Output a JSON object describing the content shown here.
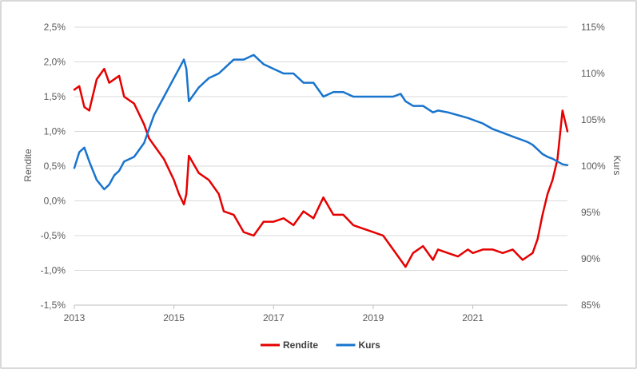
{
  "chart_data": {
    "type": "line",
    "xlabel": "",
    "x_ticks": [
      "2013",
      "2015",
      "2017",
      "2019",
      "2021"
    ],
    "x_tick_values": [
      2013,
      2015,
      2017,
      2019,
      2021
    ],
    "xlim": [
      2013,
      2022.9
    ],
    "y_left": {
      "label": "Rendite",
      "ylim": [
        -1.5,
        2.5
      ],
      "ticks": [
        2.5,
        2.0,
        1.5,
        1.0,
        0.5,
        0.0,
        -0.5,
        -1.0,
        -1.5
      ],
      "tick_labels": [
        "2,5%",
        "2,0%",
        "1,5%",
        "1,0%",
        "0,5%",
        "0,0%",
        "-0,5%",
        "-1,0%",
        "-1,5%"
      ]
    },
    "y_right": {
      "label": "Kurs",
      "ylim": [
        85,
        115
      ],
      "ticks": [
        115,
        110,
        105,
        100,
        95,
        90,
        85
      ],
      "tick_labels": [
        "115%",
        "110%",
        "105%",
        "100%",
        "95%",
        "90%",
        "85%"
      ]
    },
    "grid": true,
    "legend": "bottom",
    "series": [
      {
        "name": "Rendite",
        "axis": "left",
        "color": "#e60000",
        "x": [
          2013.0,
          2013.1,
          2013.2,
          2013.3,
          2013.45,
          2013.6,
          2013.7,
          2013.8,
          2013.9,
          2014.0,
          2014.2,
          2014.4,
          2014.5,
          2014.6,
          2014.8,
          2015.0,
          2015.1,
          2015.2,
          2015.25,
          2015.3,
          2015.5,
          2015.7,
          2015.9,
          2016.0,
          2016.2,
          2016.4,
          2016.6,
          2016.8,
          2017.0,
          2017.2,
          2017.4,
          2017.6,
          2017.8,
          2018.0,
          2018.2,
          2018.4,
          2018.6,
          2018.8,
          2019.0,
          2019.2,
          2019.4,
          2019.55,
          2019.65,
          2019.8,
          2020.0,
          2020.2,
          2020.3,
          2020.5,
          2020.7,
          2020.9,
          2021.0,
          2021.2,
          2021.4,
          2021.6,
          2021.8,
          2022.0,
          2022.1,
          2022.2,
          2022.3,
          2022.4,
          2022.5,
          2022.6,
          2022.7,
          2022.8,
          2022.9
        ],
        "y": [
          1.6,
          1.65,
          1.35,
          1.3,
          1.75,
          1.9,
          1.7,
          1.75,
          1.8,
          1.5,
          1.4,
          1.1,
          0.9,
          0.8,
          0.6,
          0.3,
          0.1,
          -0.05,
          0.1,
          0.65,
          0.4,
          0.3,
          0.1,
          -0.15,
          -0.2,
          -0.45,
          -0.5,
          -0.3,
          -0.3,
          -0.25,
          -0.35,
          -0.15,
          -0.25,
          0.05,
          -0.2,
          -0.2,
          -0.35,
          -0.4,
          -0.45,
          -0.5,
          -0.7,
          -0.85,
          -0.95,
          -0.75,
          -0.65,
          -0.85,
          -0.7,
          -0.75,
          -0.8,
          -0.7,
          -0.75,
          -0.7,
          -0.7,
          -0.75,
          -0.7,
          -0.85,
          -0.8,
          -0.75,
          -0.55,
          -0.2,
          0.1,
          0.3,
          0.6,
          1.3,
          1.0
        ]
      },
      {
        "name": "Kurs",
        "axis": "right",
        "color": "#1874cd",
        "x": [
          2013.0,
          2013.1,
          2013.2,
          2013.3,
          2013.45,
          2013.6,
          2013.7,
          2013.8,
          2013.9,
          2014.0,
          2014.2,
          2014.4,
          2014.5,
          2014.6,
          2014.8,
          2015.0,
          2015.1,
          2015.2,
          2015.25,
          2015.3,
          2015.5,
          2015.7,
          2015.9,
          2016.0,
          2016.2,
          2016.4,
          2016.6,
          2016.8,
          2017.0,
          2017.2,
          2017.4,
          2017.6,
          2017.8,
          2018.0,
          2018.2,
          2018.4,
          2018.6,
          2018.8,
          2019.0,
          2019.2,
          2019.4,
          2019.55,
          2019.65,
          2019.8,
          2020.0,
          2020.2,
          2020.3,
          2020.5,
          2020.7,
          2020.9,
          2021.0,
          2021.2,
          2021.4,
          2021.6,
          2021.8,
          2022.0,
          2022.1,
          2022.2,
          2022.3,
          2022.4,
          2022.5,
          2022.6,
          2022.7,
          2022.8,
          2022.9
        ],
        "y": [
          99.8,
          101.5,
          102.0,
          100.5,
          98.5,
          97.5,
          98.0,
          99.0,
          99.5,
          100.5,
          101.0,
          102.5,
          104.0,
          105.5,
          107.5,
          109.5,
          110.5,
          111.5,
          110.5,
          107.0,
          108.5,
          109.5,
          110.0,
          110.5,
          111.5,
          111.5,
          112.0,
          111.0,
          110.5,
          110.0,
          110.0,
          109.0,
          109.0,
          107.5,
          108.0,
          108.0,
          107.5,
          107.5,
          107.5,
          107.5,
          107.5,
          107.8,
          107.0,
          106.5,
          106.5,
          105.8,
          106.0,
          105.8,
          105.5,
          105.2,
          105.0,
          104.6,
          104.0,
          103.6,
          103.2,
          102.8,
          102.6,
          102.3,
          101.8,
          101.3,
          101.0,
          100.8,
          100.5,
          100.2,
          100.1
        ]
      }
    ]
  }
}
